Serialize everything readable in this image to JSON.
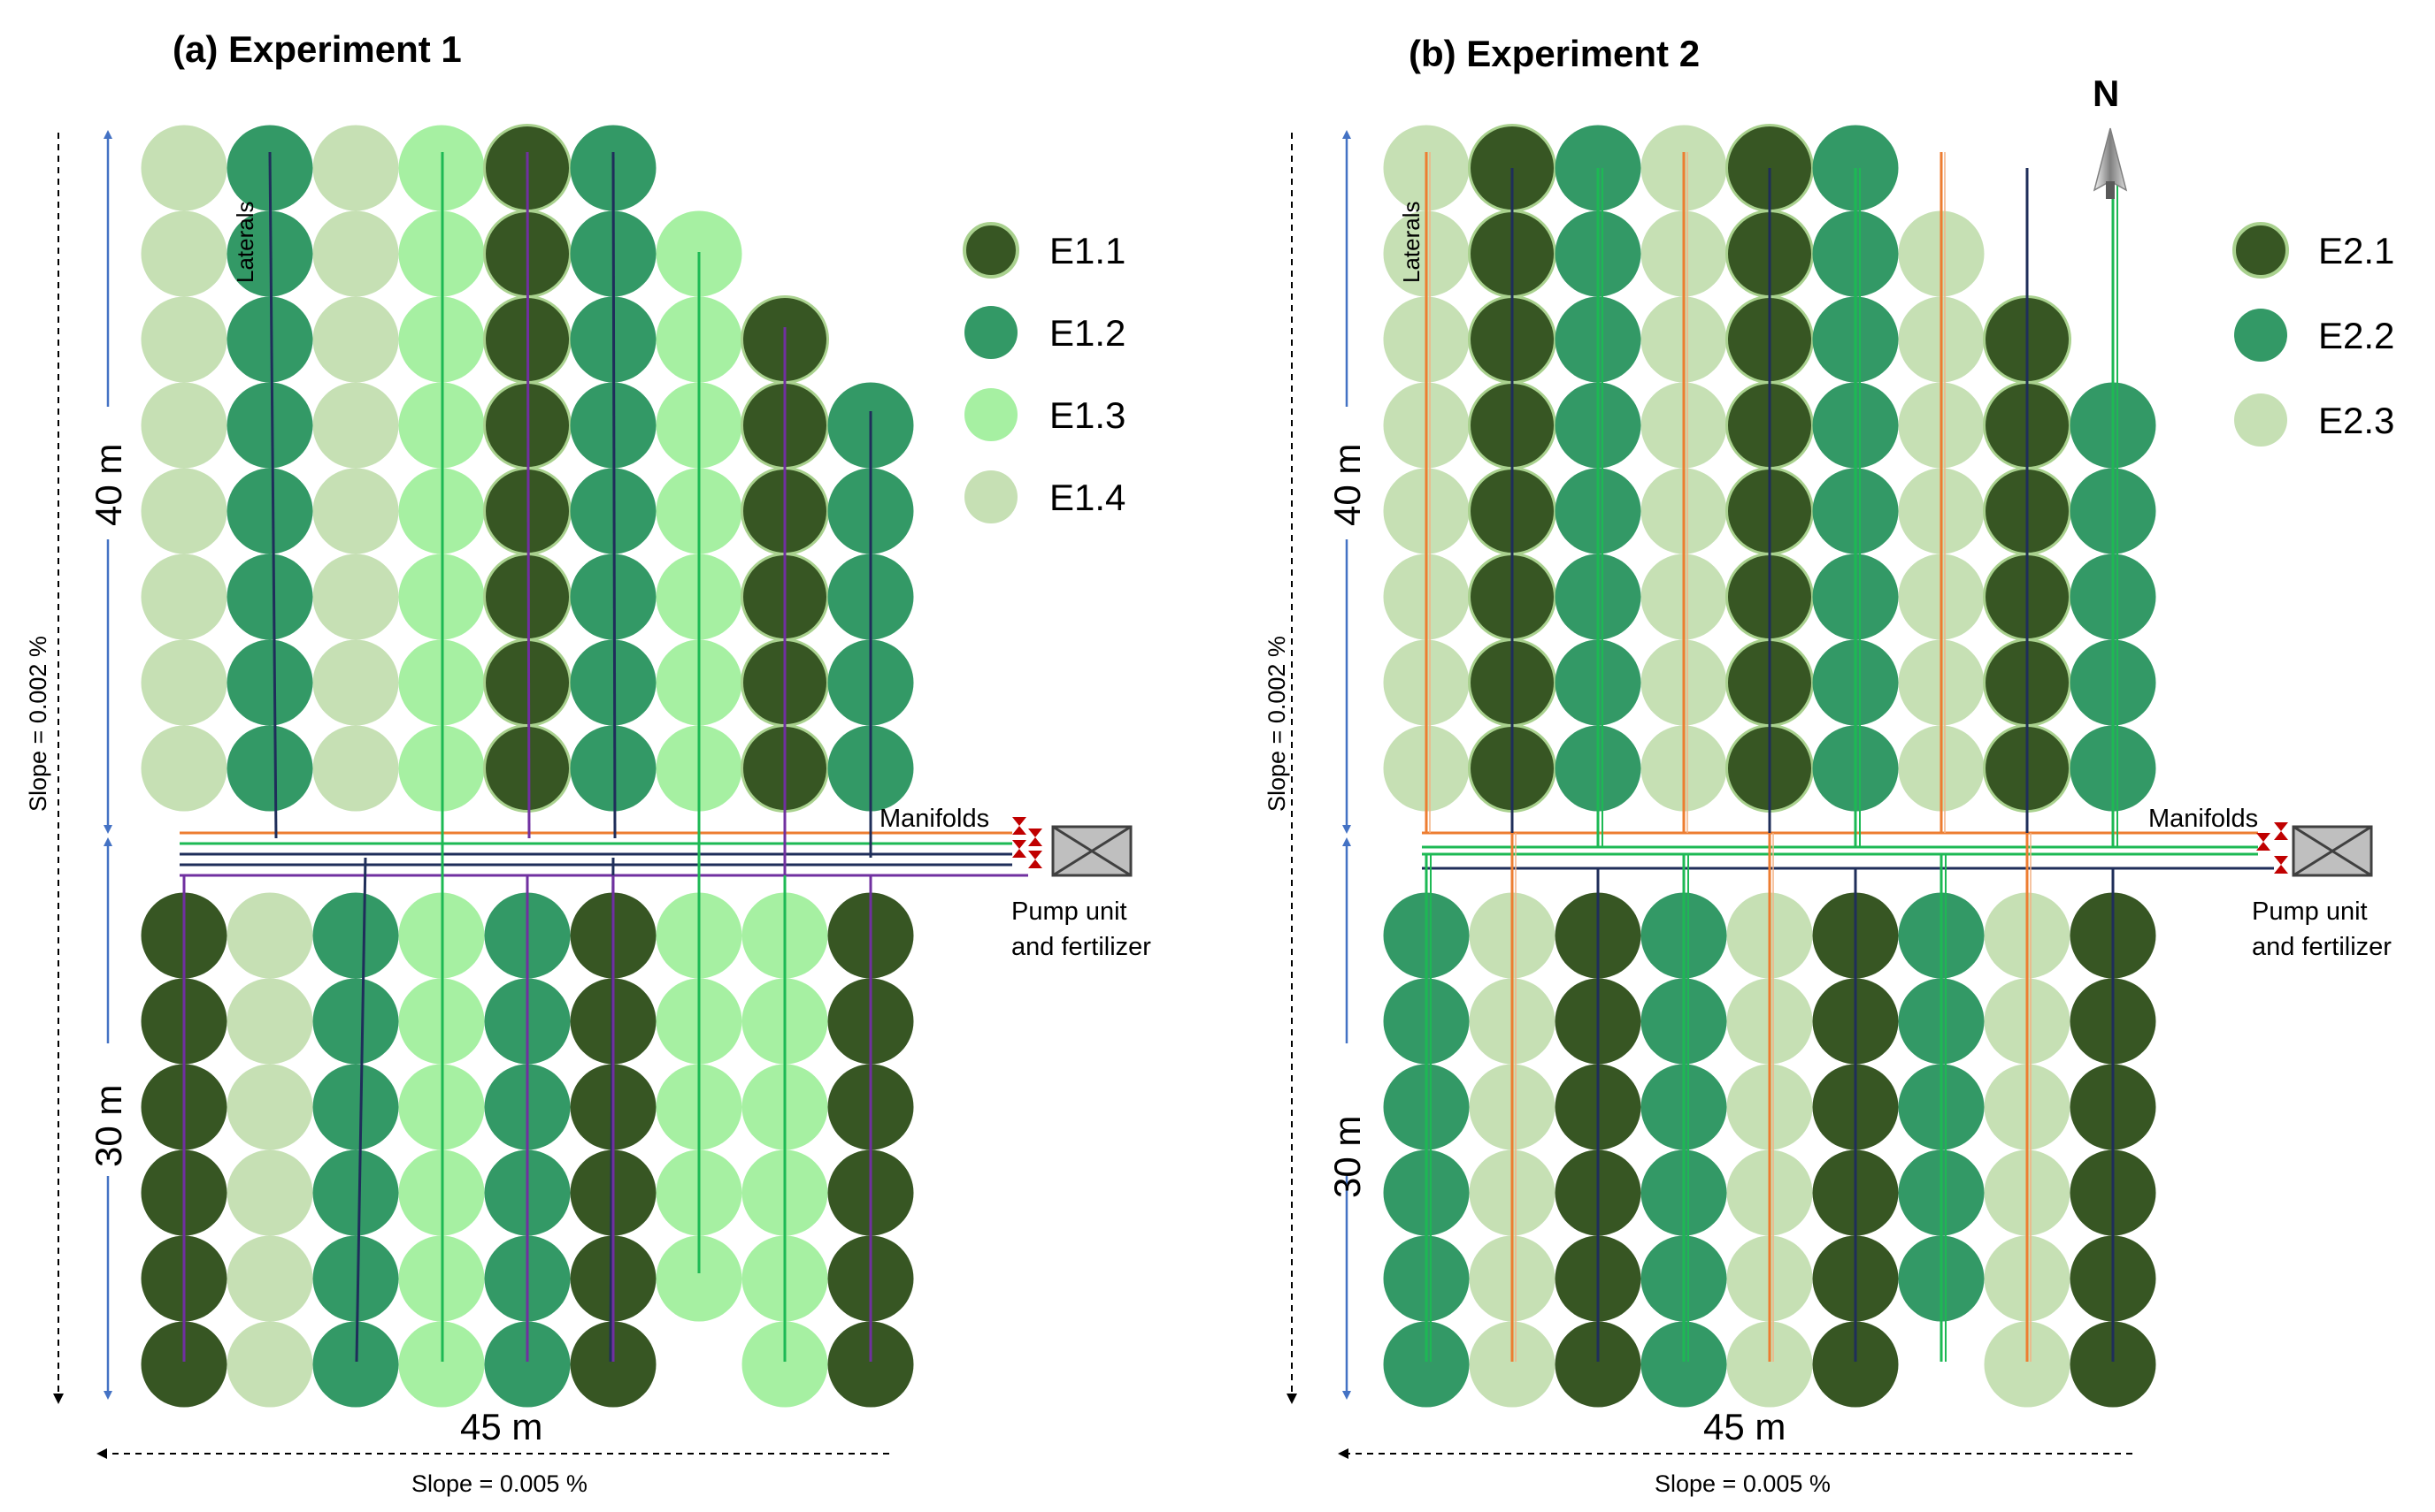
{
  "colors": {
    "c1": "#375623",
    "c2": "#339966",
    "c3": "#a6f0a2",
    "c4": "#c6e0b4",
    "orange": "#ed7d31",
    "green_line": "#1db954",
    "navy": "#1f2e5a",
    "purple": "#7030a0",
    "blue_arrow": "#4472c4",
    "valve": "#c00000"
  },
  "experiment1": {
    "title": "(a) Experiment 1",
    "legend": [
      {
        "label": "E1.1",
        "color": "c1"
      },
      {
        "label": "E1.2",
        "color": "c2"
      },
      {
        "label": "E1.3",
        "color": "c3"
      },
      {
        "label": "E1.4",
        "color": "c4"
      }
    ],
    "north_columns": [
      [
        "c4",
        "c4",
        "c4",
        "c4",
        "c4",
        "c4",
        "c4",
        "c4"
      ],
      [
        "c2",
        "c2",
        "c2",
        "c2",
        "c2",
        "c2",
        "c2",
        "c2"
      ],
      [
        "c4",
        "c4",
        "c4",
        "c4",
        "c4",
        "c4",
        "c4",
        "c4"
      ],
      [
        "c3",
        "c3",
        "c3",
        "c3",
        "c3",
        "c3",
        "c3",
        "c3"
      ],
      [
        "c1",
        "c1",
        "c1",
        "c1",
        "c1",
        "c1",
        "c1",
        "c1"
      ],
      [
        "c2",
        "c2",
        "c2",
        "c2",
        "c2",
        "c2",
        "c2",
        "c2"
      ],
      [
        "c3",
        "c3",
        "c3",
        "c3",
        "c3",
        "c3",
        "c3"
      ],
      [
        "c1",
        "c1",
        "c1",
        "c1",
        "c1",
        "c1"
      ],
      [
        "c2",
        "c2",
        "c2",
        "c2",
        "c2"
      ]
    ],
    "south_columns": [
      [
        "c1",
        "c1",
        "c1",
        "c1",
        "c1",
        "c1"
      ],
      [
        "c4",
        "c4",
        "c4",
        "c4",
        "c4",
        "c4"
      ],
      [
        "c2",
        "c2",
        "c2",
        "c2",
        "c2",
        "c2"
      ],
      [
        "c3",
        "c3",
        "c3",
        "c3",
        "c3",
        "c3"
      ],
      [
        "c2",
        "c2",
        "c2",
        "c2",
        "c2",
        "c2"
      ],
      [
        "c1",
        "c1",
        "c1",
        "c1",
        "c1",
        "c1"
      ],
      [
        "c3",
        "c3",
        "c3",
        "c3",
        "c3"
      ],
      [
        "c3",
        "c3",
        "c3",
        "c3",
        "c3",
        "c3"
      ],
      [
        "c1",
        "c1",
        "c1",
        "c1",
        "c1",
        "c1"
      ]
    ],
    "laterals_label": "Laterals",
    "manifolds_label": "Manifolds",
    "pump_label_1": "Pump unit",
    "pump_label_2": "and fertilizer",
    "dim_north": "40 m",
    "dim_south": "30 m",
    "dim_width": "45 m",
    "slope_vertical": "Slope = 0.002 %",
    "slope_horizontal": "Slope = 0.005 %"
  },
  "experiment2": {
    "title": "(b) Experiment 2",
    "legend": [
      {
        "label": "E2.1",
        "color": "c1"
      },
      {
        "label": "E2.2",
        "color": "c2"
      },
      {
        "label": "E2.3",
        "color": "c4"
      }
    ],
    "north_columns": [
      [
        "c4",
        "c4",
        "c4",
        "c4",
        "c4",
        "c4",
        "c4",
        "c4"
      ],
      [
        "c1",
        "c1",
        "c1",
        "c1",
        "c1",
        "c1",
        "c1",
        "c1"
      ],
      [
        "c2",
        "c2",
        "c2",
        "c2",
        "c2",
        "c2",
        "c2",
        "c2"
      ],
      [
        "c4",
        "c4",
        "c4",
        "c4",
        "c4",
        "c4",
        "c4",
        "c4"
      ],
      [
        "c1",
        "c1",
        "c1",
        "c1",
        "c1",
        "c1",
        "c1",
        "c1"
      ],
      [
        "c2",
        "c2",
        "c2",
        "c2",
        "c2",
        "c2",
        "c2",
        "c2"
      ],
      [
        "c4",
        "c4",
        "c4",
        "c4",
        "c4",
        "c4",
        "c4"
      ],
      [
        "c1",
        "c1",
        "c1",
        "c1",
        "c1",
        "c1"
      ],
      [
        "c2",
        "c2",
        "c2",
        "c2",
        "c2"
      ]
    ],
    "south_columns": [
      [
        "c2",
        "c2",
        "c2",
        "c2",
        "c2",
        "c2"
      ],
      [
        "c4",
        "c4",
        "c4",
        "c4",
        "c4",
        "c4"
      ],
      [
        "c1",
        "c1",
        "c1",
        "c1",
        "c1",
        "c1"
      ],
      [
        "c2",
        "c2",
        "c2",
        "c2",
        "c2",
        "c2"
      ],
      [
        "c4",
        "c4",
        "c4",
        "c4",
        "c4",
        "c4"
      ],
      [
        "c1",
        "c1",
        "c1",
        "c1",
        "c1",
        "c1"
      ],
      [
        "c2",
        "c2",
        "c2",
        "c2",
        "c2"
      ],
      [
        "c4",
        "c4",
        "c4",
        "c4",
        "c4",
        "c4"
      ],
      [
        "c1",
        "c1",
        "c1",
        "c1",
        "c1",
        "c1"
      ]
    ],
    "laterals_label": "Laterals",
    "manifolds_label": "Manifolds",
    "pump_label_1": "Pump unit",
    "pump_label_2": "and fertilizer",
    "dim_north": "40 m",
    "dim_south": "30 m",
    "dim_width": "45 m",
    "slope_vertical": "Slope = 0.002 %",
    "slope_horizontal": "Slope = 0.005 %",
    "north_label": "N"
  }
}
